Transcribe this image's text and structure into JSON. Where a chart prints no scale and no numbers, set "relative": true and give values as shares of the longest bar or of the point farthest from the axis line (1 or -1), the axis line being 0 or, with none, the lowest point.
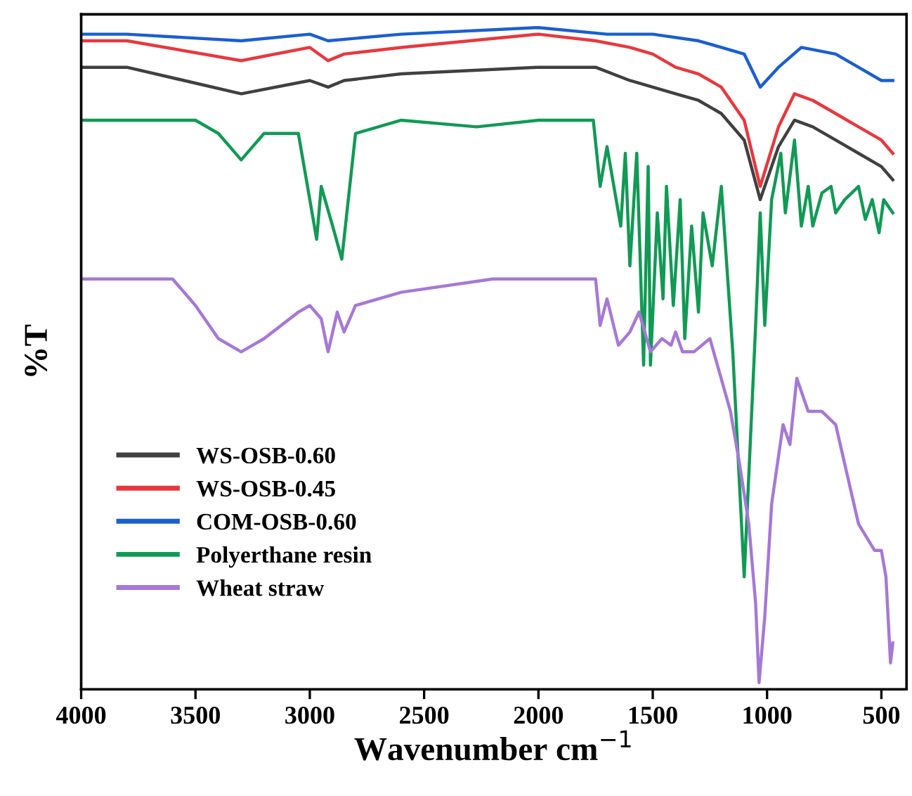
{
  "chart_data": {
    "type": "line",
    "xlabel": "Wavenumber cm$^{−1}$",
    "ylabel": "%T",
    "relative": true,
    "xlim": [
      4000,
      390
    ],
    "xticks": [
      4000,
      3500,
      3000,
      2500,
      2000,
      1500,
      1000,
      500
    ],
    "grid": false,
    "legend": "bottom left",
    "marker": "none",
    "line_style": "solid",
    "series": [
      {
        "name": "WS-OSB-0.60",
        "color": "#404040",
        "x": [
          4000,
          3800,
          3300,
          3000,
          2920,
          2850,
          2600,
          2000,
          1750,
          1600,
          1500,
          1400,
          1300,
          1200,
          1100,
          1030,
          950,
          880,
          800,
          700,
          600,
          500,
          450
        ],
        "values": [
          0.94,
          0.94,
          0.9,
          0.92,
          0.91,
          0.92,
          0.93,
          0.94,
          0.94,
          0.92,
          0.91,
          0.9,
          0.89,
          0.87,
          0.83,
          0.74,
          0.82,
          0.86,
          0.85,
          0.83,
          0.81,
          0.79,
          0.77
        ]
      },
      {
        "name": "WS-OSB-0.45",
        "color": "#e8383d",
        "x": [
          4000,
          3800,
          3300,
          3000,
          2920,
          2850,
          2600,
          2000,
          1750,
          1600,
          1500,
          1400,
          1300,
          1200,
          1100,
          1030,
          950,
          880,
          800,
          700,
          600,
          500,
          450
        ],
        "values": [
          0.98,
          0.98,
          0.95,
          0.97,
          0.95,
          0.96,
          0.97,
          0.99,
          0.98,
          0.97,
          0.96,
          0.94,
          0.93,
          0.91,
          0.86,
          0.76,
          0.85,
          0.9,
          0.89,
          0.87,
          0.85,
          0.83,
          0.81
        ]
      },
      {
        "name": "COM-OSB-0.60",
        "color": "#1a5fd0",
        "x": [
          4000,
          3800,
          3300,
          3000,
          2920,
          2600,
          2000,
          1700,
          1500,
          1300,
          1200,
          1100,
          1030,
          950,
          850,
          700,
          600,
          500,
          450
        ],
        "values": [
          0.99,
          0.99,
          0.98,
          0.99,
          0.98,
          0.99,
          1.0,
          0.99,
          0.99,
          0.98,
          0.97,
          0.96,
          0.91,
          0.94,
          0.97,
          0.96,
          0.94,
          0.92,
          0.92
        ]
      },
      {
        "name": "Polyerthane resin",
        "color": "#119a55",
        "x": [
          4000,
          3500,
          3400,
          3300,
          3200,
          3050,
          2970,
          2950,
          2900,
          2860,
          2800,
          2600,
          2270,
          2000,
          1760,
          1730,
          1700,
          1640,
          1620,
          1600,
          1570,
          1540,
          1520,
          1510,
          1480,
          1455,
          1440,
          1410,
          1380,
          1360,
          1330,
          1300,
          1280,
          1240,
          1200,
          1150,
          1100,
          1050,
          1030,
          1010,
          980,
          940,
          920,
          880,
          850,
          820,
          800,
          760,
          720,
          700,
          660,
          600,
          570,
          540,
          510,
          490,
          450
        ],
        "values": [
          0.86,
          0.86,
          0.84,
          0.8,
          0.84,
          0.84,
          0.68,
          0.76,
          0.7,
          0.65,
          0.84,
          0.86,
          0.85,
          0.86,
          0.86,
          0.76,
          0.82,
          0.7,
          0.81,
          0.64,
          0.81,
          0.49,
          0.79,
          0.49,
          0.72,
          0.59,
          0.76,
          0.58,
          0.74,
          0.53,
          0.7,
          0.57,
          0.72,
          0.64,
          0.76,
          0.51,
          0.17,
          0.55,
          0.72,
          0.55,
          0.74,
          0.81,
          0.72,
          0.83,
          0.7,
          0.76,
          0.7,
          0.75,
          0.76,
          0.72,
          0.74,
          0.76,
          0.71,
          0.74,
          0.69,
          0.74,
          0.72
        ]
      },
      {
        "name": "Wheat straw",
        "color": "#a678d6",
        "x": [
          4000,
          3600,
          3500,
          3400,
          3300,
          3200,
          3050,
          3000,
          2950,
          2920,
          2880,
          2850,
          2800,
          2600,
          2200,
          2000,
          1750,
          1730,
          1700,
          1650,
          1600,
          1560,
          1510,
          1460,
          1420,
          1400,
          1370,
          1320,
          1250,
          1160,
          1120,
          1080,
          1050,
          1035,
          1010,
          980,
          930,
          900,
          870,
          820,
          760,
          700,
          660,
          600,
          530,
          500,
          480,
          460,
          450
        ],
        "values": [
          0.62,
          0.62,
          0.58,
          0.53,
          0.51,
          0.53,
          0.57,
          0.58,
          0.56,
          0.51,
          0.57,
          0.54,
          0.58,
          0.6,
          0.62,
          0.62,
          0.62,
          0.55,
          0.59,
          0.52,
          0.54,
          0.57,
          0.51,
          0.53,
          0.52,
          0.54,
          0.51,
          0.51,
          0.53,
          0.42,
          0.34,
          0.25,
          0.13,
          0.01,
          0.11,
          0.28,
          0.4,
          0.37,
          0.47,
          0.42,
          0.42,
          0.4,
          0.34,
          0.25,
          0.21,
          0.21,
          0.17,
          0.04,
          0.07
        ]
      }
    ]
  }
}
